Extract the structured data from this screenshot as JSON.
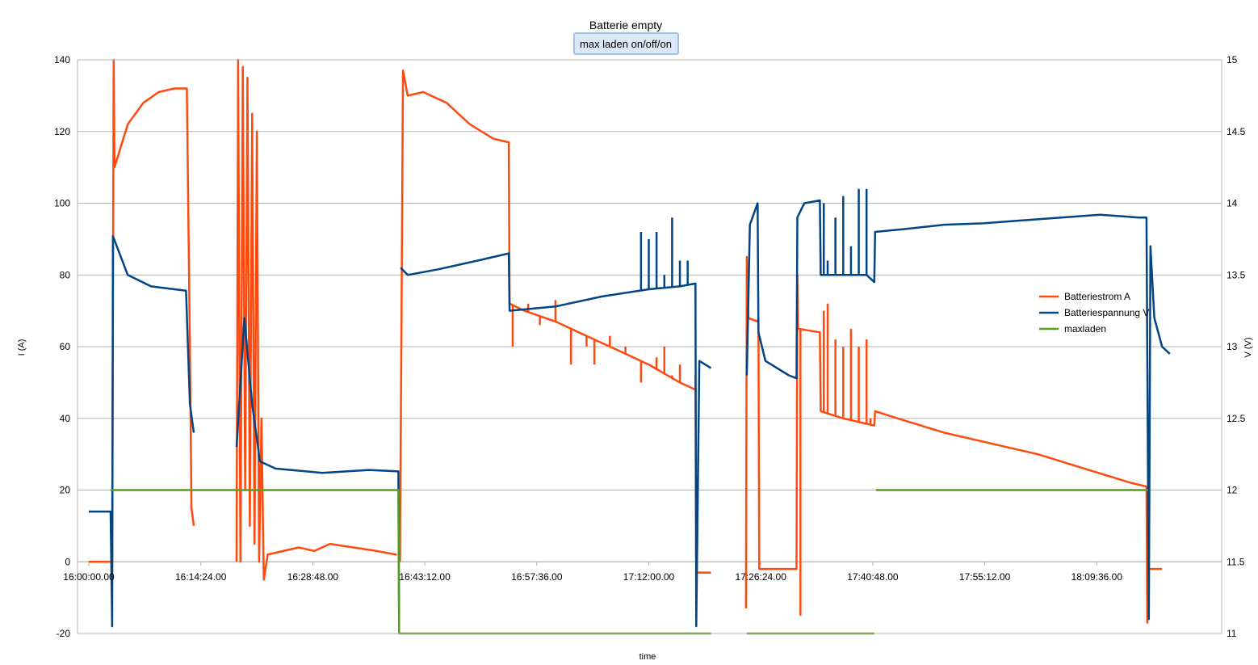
{
  "chart_data": {
    "type": "line",
    "title": "Batterie empty",
    "subtitle": "max laden on/off/on",
    "xlabel": "time",
    "ylabel_left": "I (A)",
    "ylabel_right": "V (V)",
    "x_ticks": [
      "16:00:00.00",
      "16:14:24.00",
      "16:28:48.00",
      "16:43:12.00",
      "16:57:36.00",
      "17:12:00.00",
      "17:26:24.00",
      "17:40:48.00",
      "17:55:12.00",
      "18:09:36.00"
    ],
    "x_range_minutes": [
      0,
      144
    ],
    "y_left_range": [
      -20,
      140
    ],
    "y_left_ticks": [
      "-20",
      "0",
      "20",
      "40",
      "60",
      "80",
      "100",
      "120",
      "140"
    ],
    "y_right_range": [
      11,
      15
    ],
    "y_right_ticks": [
      "11",
      "11.5",
      "12",
      "12.5",
      "13",
      "13.5",
      "14",
      "14.5",
      "15"
    ],
    "grid": true,
    "legend_position": "right",
    "colors": {
      "current": "#ff4a0f",
      "voltage": "#004586",
      "maxladen": "#579d1c",
      "grid": "#b3b3b3"
    },
    "series": [
      {
        "name": "Batteriestrom  A",
        "axis": "left",
        "color": "#ff4a0f",
        "points": [
          [
            0,
            0
          ],
          [
            3,
            0
          ],
          [
            3.2,
            140
          ],
          [
            3.3,
            110
          ],
          [
            5,
            122
          ],
          [
            7,
            128
          ],
          [
            9,
            131
          ],
          [
            11,
            132
          ],
          [
            12.5,
            132
          ],
          [
            12.6,
            132
          ],
          [
            13,
            60
          ],
          [
            13.2,
            15
          ],
          [
            13.5,
            10
          ],
          [
            null,
            null
          ],
          [
            19,
            0
          ],
          [
            19.2,
            140
          ],
          [
            19.5,
            0
          ],
          [
            19.8,
            138
          ],
          [
            20.1,
            20
          ],
          [
            20.4,
            135
          ],
          [
            20.7,
            10
          ],
          [
            21,
            125
          ],
          [
            21.3,
            5
          ],
          [
            21.6,
            120
          ],
          [
            21.9,
            0
          ],
          [
            22.2,
            40
          ],
          [
            22.5,
            -5
          ],
          [
            23,
            2
          ],
          [
            25,
            3
          ],
          [
            27,
            4
          ],
          [
            29,
            3
          ],
          [
            31,
            5
          ],
          [
            34,
            4
          ],
          [
            37,
            3
          ],
          [
            39.5,
            2
          ],
          [
            39.6,
            2
          ],
          [
            null,
            null
          ],
          [
            40,
            0
          ],
          [
            40.2,
            66
          ],
          [
            40.4,
            137
          ],
          [
            41,
            130
          ],
          [
            43,
            131
          ],
          [
            46,
            128
          ],
          [
            49,
            122
          ],
          [
            52,
            118
          ],
          [
            54,
            117
          ],
          [
            54.1,
            72
          ],
          [
            56,
            70
          ],
          [
            60,
            67
          ],
          [
            64,
            63
          ],
          [
            68,
            59
          ],
          [
            72,
            55
          ],
          [
            76,
            50
          ],
          [
            78,
            48
          ],
          [
            78.1,
            -3
          ],
          [
            80,
            -3
          ],
          [
            null,
            null
          ],
          [
            84.5,
            -13
          ],
          [
            84.6,
            85
          ],
          [
            84.8,
            68
          ],
          [
            86,
            67
          ],
          [
            86.1,
            68
          ],
          [
            86.2,
            -2
          ],
          [
            90,
            -2
          ],
          [
            91,
            -2
          ],
          [
            91.1,
            80
          ],
          [
            91.2,
            65
          ],
          [
            94,
            64
          ],
          [
            94.1,
            42
          ],
          [
            97,
            40
          ],
          [
            101,
            38
          ],
          [
            101.1,
            42
          ],
          [
            104,
            40
          ],
          [
            110,
            36
          ],
          [
            116,
            33
          ],
          [
            122,
            30
          ],
          [
            128,
            26
          ],
          [
            134,
            22
          ],
          [
            136,
            21
          ],
          [
            136.1,
            -17
          ],
          [
            136.3,
            -2
          ],
          [
            138,
            -2
          ]
        ],
        "spikes": [
          [
            54.5,
            60
          ],
          [
            56.5,
            72
          ],
          [
            58,
            66
          ],
          [
            60,
            73
          ],
          [
            62,
            55
          ],
          [
            64,
            60
          ],
          [
            65,
            55
          ],
          [
            67,
            63
          ],
          [
            69,
            60
          ],
          [
            71,
            50
          ],
          [
            73,
            57
          ],
          [
            74,
            60
          ],
          [
            75,
            52
          ],
          [
            76,
            55
          ],
          [
            78,
            52
          ],
          [
            91.5,
            -15
          ],
          [
            94.5,
            70
          ],
          [
            95,
            72
          ],
          [
            96,
            62
          ],
          [
            97,
            60
          ],
          [
            98,
            65
          ],
          [
            99,
            60
          ],
          [
            100,
            62
          ],
          [
            100.5,
            40
          ]
        ]
      },
      {
        "name": "Batteriespannung  V",
        "axis": "right",
        "color": "#004586",
        "points": [
          [
            0,
            11.85
          ],
          [
            2.8,
            11.85
          ],
          [
            3,
            11.05
          ],
          [
            3.1,
            13.77
          ],
          [
            5,
            13.5
          ],
          [
            8,
            13.42
          ],
          [
            11,
            13.4
          ],
          [
            12.5,
            13.39
          ],
          [
            13,
            12.6
          ],
          [
            13.5,
            12.4
          ],
          [
            null,
            null
          ],
          [
            19,
            12.3
          ],
          [
            20,
            13.2
          ],
          [
            21,
            12.6
          ],
          [
            22,
            12.2
          ],
          [
            24,
            12.15
          ],
          [
            30,
            12.12
          ],
          [
            36,
            12.14
          ],
          [
            39.8,
            12.13
          ],
          [
            39.9,
            11.05
          ],
          [
            null,
            null
          ],
          [
            40.1,
            13.55
          ],
          [
            41,
            13.5
          ],
          [
            45,
            13.54
          ],
          [
            50,
            13.6
          ],
          [
            54,
            13.65
          ],
          [
            54.1,
            13.25
          ],
          [
            60,
            13.28
          ],
          [
            66,
            13.35
          ],
          [
            72,
            13.4
          ],
          [
            76,
            13.42
          ],
          [
            78,
            13.44
          ],
          [
            78.1,
            11.05
          ],
          [
            78.5,
            12.9
          ],
          [
            80,
            12.85
          ],
          [
            null,
            null
          ],
          [
            84.6,
            12.8
          ],
          [
            85,
            13.85
          ],
          [
            86,
            14.0
          ],
          [
            86.1,
            13.1
          ],
          [
            87,
            12.9
          ],
          [
            90,
            12.8
          ],
          [
            91,
            12.78
          ],
          [
            91.1,
            13.9
          ],
          [
            92,
            14.0
          ],
          [
            94,
            14.02
          ],
          [
            94.1,
            13.5
          ],
          [
            100,
            13.5
          ],
          [
            101,
            13.45
          ],
          [
            101.1,
            13.8
          ],
          [
            105,
            13.82
          ],
          [
            110,
            13.85
          ],
          [
            115,
            13.86
          ],
          [
            120,
            13.88
          ],
          [
            125,
            13.9
          ],
          [
            130,
            13.92
          ],
          [
            135,
            13.9
          ],
          [
            136,
            13.9
          ],
          [
            136.3,
            11.1
          ],
          [
            136.5,
            13.7
          ],
          [
            137,
            13.2
          ],
          [
            138,
            13.0
          ],
          [
            139,
            12.95
          ]
        ],
        "spikes": [
          [
            71,
            13.8
          ],
          [
            72,
            13.75
          ],
          [
            73,
            13.8
          ],
          [
            74,
            13.5
          ],
          [
            75,
            13.9
          ],
          [
            76,
            13.6
          ],
          [
            77,
            13.6
          ],
          [
            94.5,
            14.0
          ],
          [
            95,
            13.6
          ],
          [
            96,
            13.9
          ],
          [
            97,
            14.05
          ],
          [
            98,
            13.7
          ],
          [
            99,
            14.1
          ],
          [
            100,
            14.1
          ]
        ]
      },
      {
        "name": "maxladen",
        "axis": "left",
        "color": "#579d1c",
        "points": [
          [
            2.8,
            20
          ],
          [
            39.8,
            20
          ],
          [
            39.9,
            -20
          ],
          [
            80,
            -20
          ],
          [
            null,
            null
          ],
          [
            84.6,
            -20
          ],
          [
            101,
            -20
          ],
          [
            null,
            null
          ],
          [
            101.2,
            20
          ],
          [
            136.2,
            20
          ]
        ]
      }
    ]
  }
}
